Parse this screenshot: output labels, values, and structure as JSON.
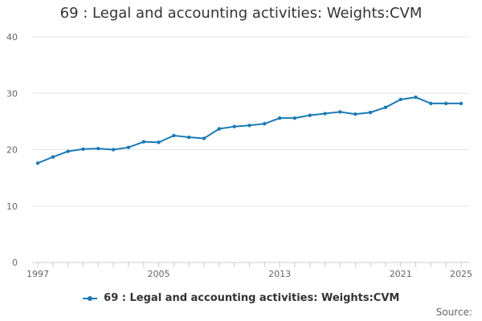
{
  "chart_data": {
    "type": "line",
    "title": "69 : Legal and accounting activities: Weights:CVM",
    "xlabel": "",
    "ylabel": "",
    "x": [
      1997,
      1998,
      1999,
      2000,
      2001,
      2002,
      2003,
      2004,
      2005,
      2006,
      2007,
      2008,
      2009,
      2010,
      2011,
      2012,
      2013,
      2014,
      2015,
      2016,
      2017,
      2018,
      2019,
      2020,
      2021,
      2022,
      2023,
      2024,
      2025
    ],
    "xlim": [
      1997,
      2025
    ],
    "x_ticks": [
      "1997",
      "2005",
      "2013",
      "2021",
      "2025"
    ],
    "ylim": [
      0,
      40
    ],
    "y_ticks": [
      "0",
      "10",
      "20",
      "30",
      "40"
    ],
    "grid": "horizontal",
    "legend": "bottom",
    "series": [
      {
        "name": "69 : Legal and accounting activities: Weights:CVM",
        "color": "#1a7ab5",
        "values": [
          17.6,
          18.7,
          19.7,
          20.1,
          20.2,
          20.0,
          20.4,
          21.4,
          21.3,
          22.5,
          22.2,
          22.0,
          23.7,
          24.1,
          24.3,
          24.6,
          25.6,
          25.6,
          26.1,
          26.4,
          26.7,
          26.3,
          26.6,
          27.5,
          28.9,
          29.3,
          28.2,
          28.2,
          28.2
        ]
      }
    ],
    "source_label": "Source:"
  }
}
